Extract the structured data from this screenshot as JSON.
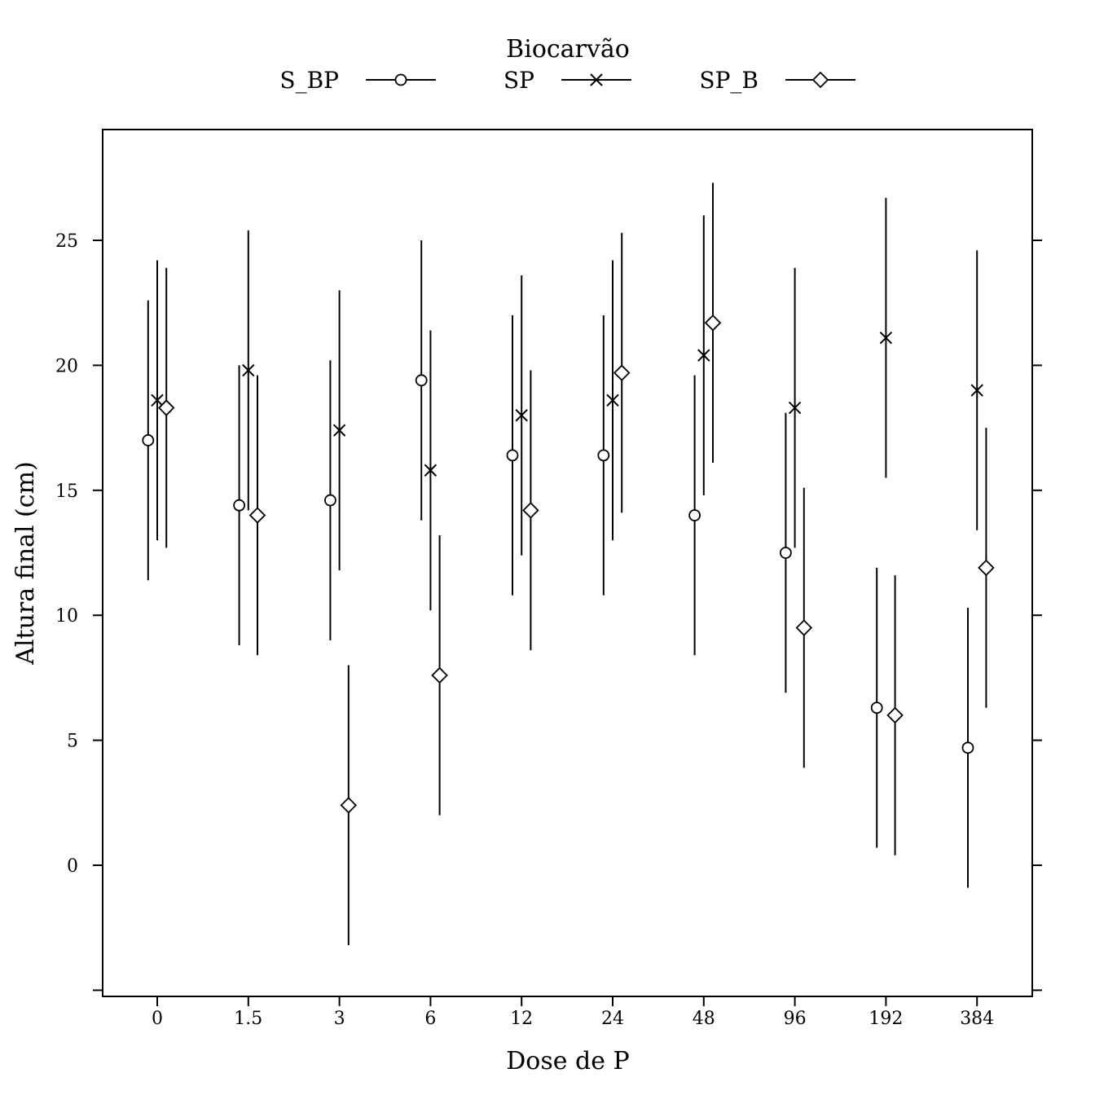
{
  "chart_data": {
    "type": "scatter",
    "xlabel": "Dose de P",
    "ylabel": "Altura final (cm)",
    "ylim": [
      -5,
      29
    ],
    "yticks": [
      0,
      5,
      10,
      15,
      20,
      25
    ],
    "categories": [
      "0",
      "1.5",
      "3",
      "6",
      "12",
      "24",
      "48",
      "96",
      "192",
      "384"
    ],
    "legend": {
      "title": "Biocarvão",
      "position": "top"
    },
    "series": [
      {
        "name": "S_BP",
        "marker": "circle",
        "values": [
          17.0,
          14.4,
          14.6,
          19.4,
          16.4,
          16.4,
          14.0,
          12.5,
          6.3,
          4.7
        ],
        "lower": [
          11.4,
          8.8,
          9.0,
          13.8,
          10.8,
          10.8,
          8.4,
          6.9,
          0.7,
          -0.9
        ],
        "upper": [
          22.6,
          20.0,
          20.2,
          25.0,
          22.0,
          22.0,
          19.6,
          18.1,
          11.9,
          10.3
        ]
      },
      {
        "name": "SP",
        "marker": "x",
        "values": [
          18.6,
          19.8,
          17.4,
          15.8,
          18.0,
          18.6,
          20.4,
          18.3,
          21.1,
          19.0
        ],
        "lower": [
          13.0,
          14.2,
          11.8,
          10.2,
          12.4,
          13.0,
          14.8,
          12.7,
          15.5,
          13.4
        ],
        "upper": [
          24.2,
          25.4,
          23.0,
          21.4,
          23.6,
          24.2,
          26.0,
          23.9,
          26.7,
          24.6
        ]
      },
      {
        "name": "SP_B",
        "marker": "diamond",
        "values": [
          18.3,
          14.0,
          2.4,
          7.6,
          14.2,
          19.7,
          21.7,
          9.5,
          6.0,
          11.9
        ],
        "lower": [
          12.7,
          8.4,
          -3.2,
          2.0,
          8.6,
          14.1,
          16.1,
          3.9,
          0.4,
          6.3
        ],
        "upper": [
          23.9,
          19.6,
          8.0,
          13.2,
          19.8,
          25.3,
          27.3,
          15.1,
          11.6,
          17.5
        ]
      }
    ]
  }
}
